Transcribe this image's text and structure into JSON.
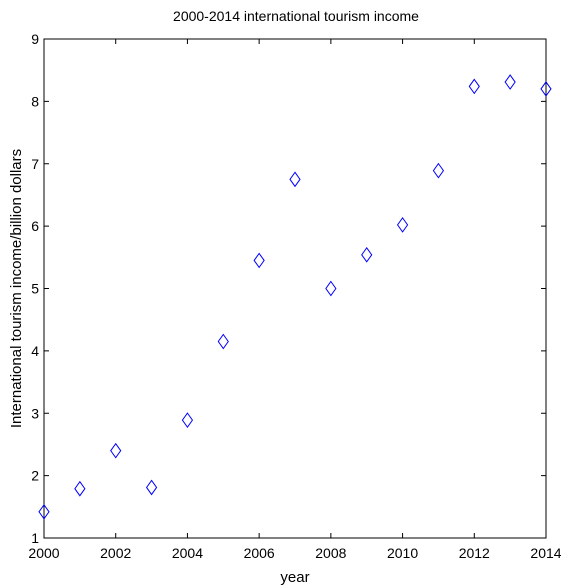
{
  "chart_data": {
    "type": "scatter",
    "title": "2000-2014 international tourism income",
    "xlabel": "year",
    "ylabel": "International tourism income/billion dollars",
    "xlim": [
      2000,
      2014
    ],
    "ylim": [
      1,
      9
    ],
    "xticks": [
      2000,
      2002,
      2004,
      2006,
      2008,
      2010,
      2012,
      2014
    ],
    "yticks": [
      1,
      2,
      3,
      4,
      5,
      6,
      7,
      8,
      9
    ],
    "grid": false,
    "marker": "diamond",
    "marker_color": "#0000ff",
    "series": [
      {
        "x": [
          2000,
          2001,
          2002,
          2003,
          2004,
          2005,
          2006,
          2007,
          2008,
          2009,
          2010,
          2011,
          2012,
          2013,
          2014
        ],
        "y": [
          1.42,
          1.79,
          2.4,
          1.81,
          2.89,
          4.15,
          5.45,
          6.75,
          5.0,
          5.54,
          6.02,
          6.89,
          8.24,
          8.31,
          8.2
        ]
      }
    ]
  }
}
